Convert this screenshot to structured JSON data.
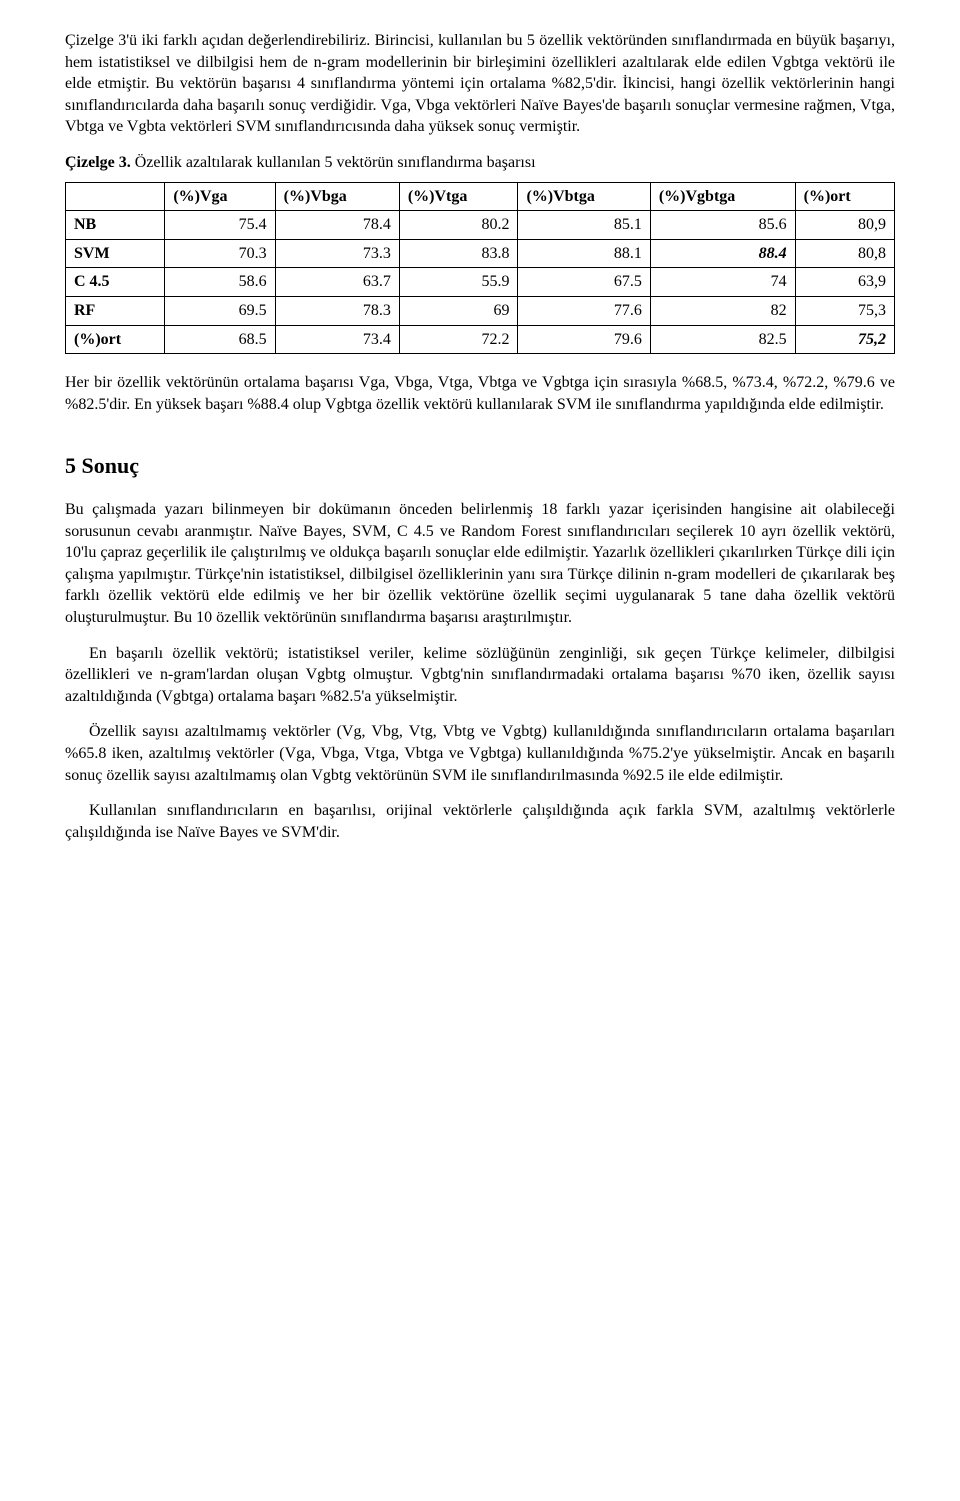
{
  "para1": "Çizelge 3'ü iki farklı açıdan değerlendirebiliriz. Birincisi, kullanılan bu 5 özellik vektöründen sınıflandırmada en büyük başarıyı, hem istatistiksel ve dilbilgisi hem de n-gram modellerinin bir birleşimini özellikleri azaltılarak elde edilen Vgbtga vektörü ile elde etmiştir. Bu vektörün başarısı 4 sınıflandırma yöntemi için ortalama %82,5'dir. İkincisi, hangi özellik vektörlerinin hangi sınıflandırıcılarda daha başarılı sonuç verdiğidir. Vga, Vbga vektörleri Naïve Bayes'de başarılı sonuçlar vermesine rağmen, Vtga, Vbtga ve Vgbta vektörleri SVM sınıflandırıcısında daha yüksek sonuç vermiştir.",
  "tableCaption": "Çizelge 3. Özellik azaltılarak kullanılan 5 vektörün sınıflandırma başarısı",
  "table": {
    "headers": [
      "",
      "(%)Vga",
      "(%)Vbga",
      "(%)Vtga",
      "(%)Vbtga",
      "(%)Vgbtga",
      "(%)ort"
    ],
    "rows": [
      {
        "label": "NB",
        "cells": [
          "75.4",
          "78.4",
          "80.2",
          "85.1",
          "85.6",
          "80,9"
        ],
        "boldIdx": -1
      },
      {
        "label": "SVM",
        "cells": [
          "70.3",
          "73.3",
          "83.8",
          "88.1",
          "88.4",
          "80,8"
        ],
        "boldIdx": 4,
        "italicIdx": 4
      },
      {
        "label": "C 4.5",
        "cells": [
          "58.6",
          "63.7",
          "55.9",
          "67.5",
          "74",
          "63,9"
        ],
        "boldIdx": -1
      },
      {
        "label": "RF",
        "cells": [
          "69.5",
          "78.3",
          "69",
          "77.6",
          "82",
          "75,3"
        ],
        "boldIdx": -1
      },
      {
        "label": "(%)ort",
        "cells": [
          "68.5",
          "73.4",
          "72.2",
          "79.6",
          "82.5",
          "75,2"
        ],
        "boldIdx": 5,
        "italicIdx": 5
      }
    ]
  },
  "para2": "Her bir özellik vektörünün ortalama başarısı Vga, Vbga, Vtga, Vbtga ve Vgbtga için sırasıyla %68.5, %73.4, %72.2, %79.6 ve %82.5'dir. En yüksek başarı %88.4 olup Vgbtga özellik vektörü kullanılarak SVM ile sınıflandırma yapıldığında elde edilmiştir.",
  "heading": "5 Sonuç",
  "para3": "Bu çalışmada yazarı bilinmeyen bir dokümanın önceden belirlenmiş 18 farklı yazar içerisinden hangisine ait olabileceği sorusunun cevabı aranmıştır. Naïve Bayes, SVM, C 4.5 ve Random Forest sınıflandırıcıları seçilerek 10 ayrı özellik vektörü, 10'lu çapraz geçerlilik ile çalıştırılmış ve oldukça başarılı sonuçlar elde edilmiştir. Yazarlık özellikleri çıkarılırken Türkçe dili için çalışma yapılmıştır. Türkçe'nin istatistiksel, dilbilgisel özelliklerinin yanı sıra Türkçe dilinin n-gram modelleri de çıkarılarak beş farklı özellik vektörü elde edilmiş ve her bir özellik vektörüne özellik seçimi uygulanarak 5 tane daha özellik vektörü oluşturulmuştur. Bu 10 özellik vektörünün sınıflandırma başarısı araştırılmıştır.",
  "para4": "En başarılı özellik vektörü; istatistiksel veriler, kelime sözlüğünün zenginliği, sık geçen Türkçe kelimeler, dilbilgisi özellikleri ve n-gram'lardan oluşan Vgbtg olmuştur. Vgbtg'nin sınıflandırmadaki ortalama başarısı %70 iken, özellik sayısı azaltıldığında (Vgbtga) ortalama başarı %82.5'a yükselmiştir.",
  "para5": "Özellik sayısı azaltılmamış vektörler (Vg, Vbg, Vtg, Vbtg ve Vgbtg) kullanıldığında sınıflandırıcıların ortalama başarıları %65.8 iken, azaltılmış vektörler (Vga, Vbga, Vtga, Vbtga ve Vgbtga) kullanıldığında %75.2'ye yükselmiştir. Ancak en başarılı sonuç özellik sayısı azaltılmamış olan Vgbtg vektörünün SVM ile sınıflandırılmasında %92.5 ile elde edilmiştir.",
  "para6": "Kullanılan sınıflandırıcıların en başarılısı, orijinal vektörlerle çalışıldığında açık farkla SVM, azaltılmış vektörlerle çalışıldığında ise Naïve Bayes ve SVM'dir."
}
